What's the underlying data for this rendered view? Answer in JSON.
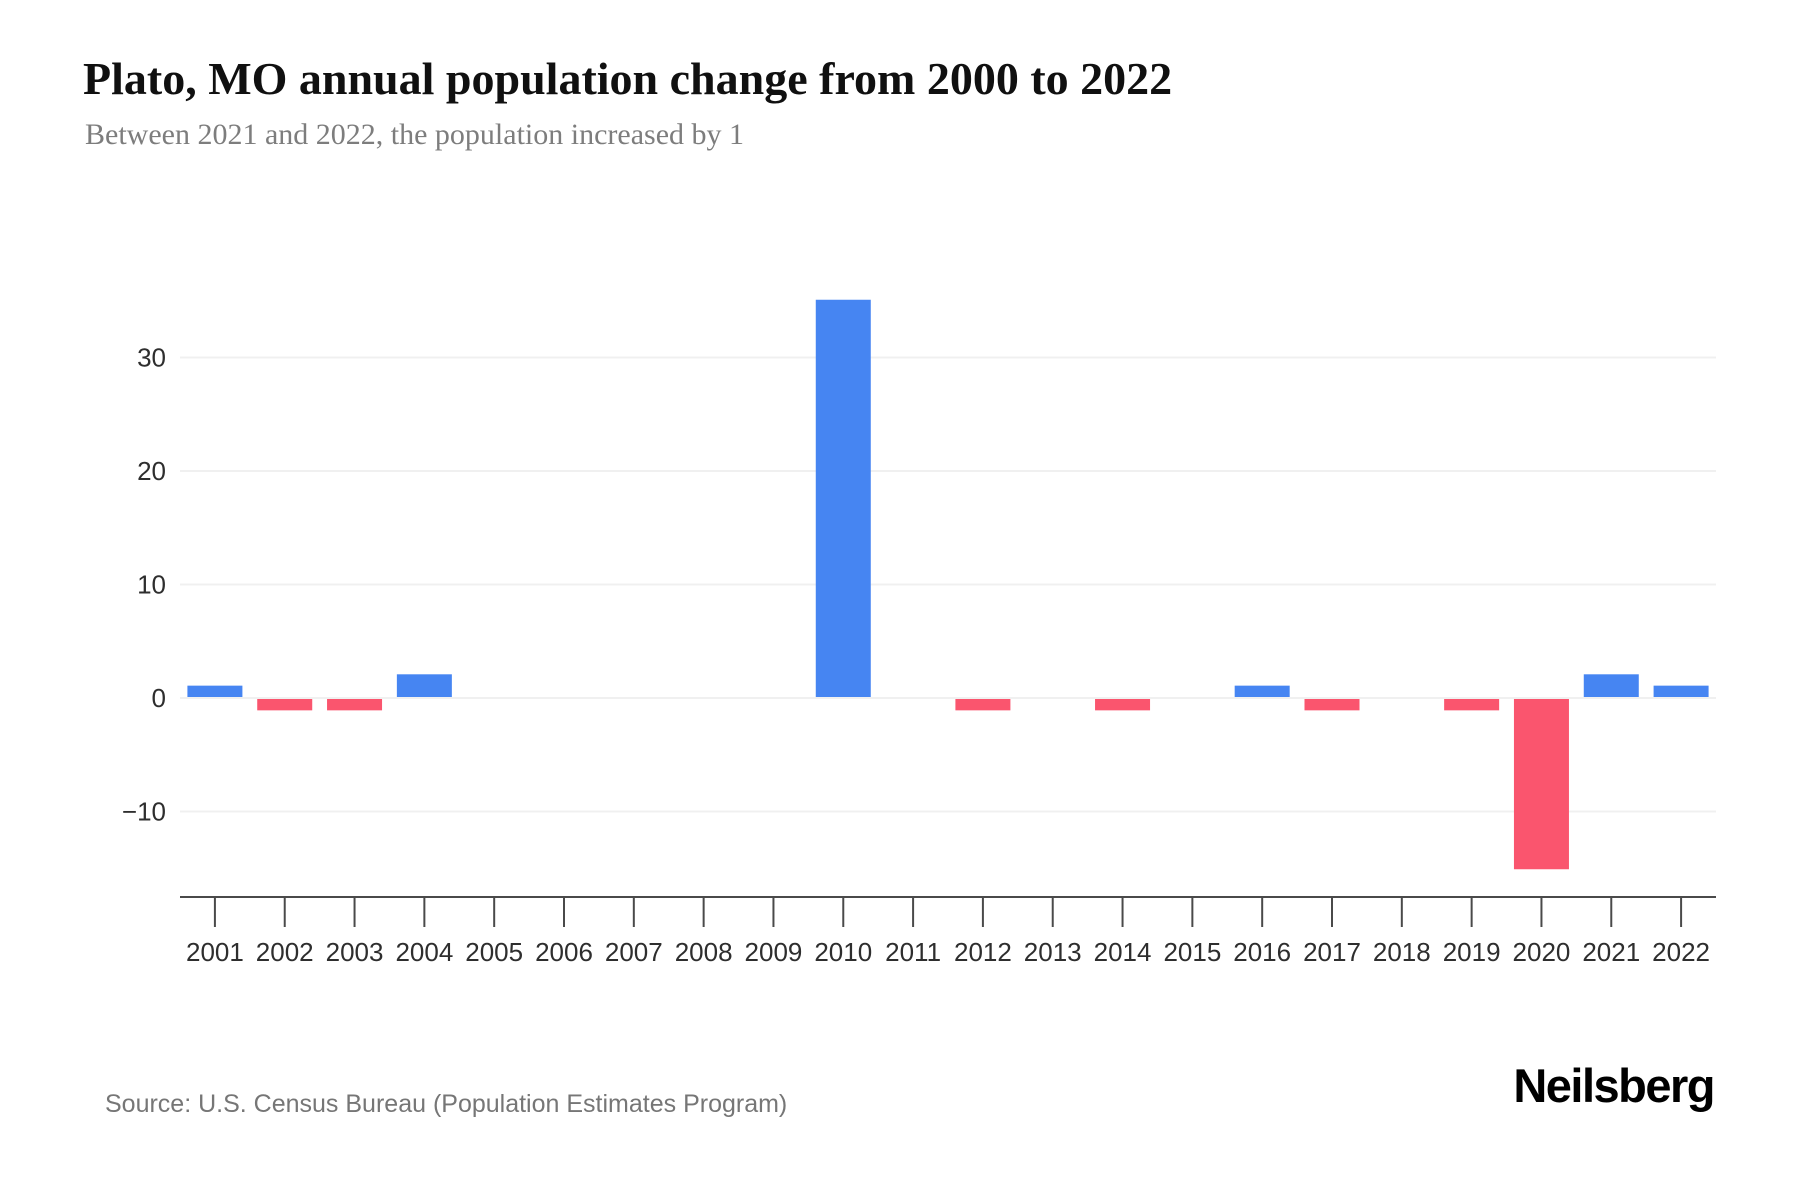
{
  "header": {
    "title": "Plato, MO annual population change from 2000 to 2022",
    "subtitle": "Between 2021 and 2022, the population increased by 1"
  },
  "footer": {
    "source": "Source: U.S. Census Bureau (Population Estimates Program)",
    "brand": "Neilsberg"
  },
  "chart_data": {
    "type": "bar",
    "title": "Plato, MO annual population change from 2000 to 2022",
    "xlabel": "",
    "ylabel": "",
    "categories": [
      "2001",
      "2002",
      "2003",
      "2004",
      "2005",
      "2006",
      "2007",
      "2008",
      "2009",
      "2010",
      "2011",
      "2012",
      "2013",
      "2014",
      "2015",
      "2016",
      "2017",
      "2018",
      "2019",
      "2020",
      "2021",
      "2022"
    ],
    "values": [
      1,
      -1,
      -1,
      2,
      0,
      0,
      0,
      0,
      0,
      35,
      0,
      -1,
      0,
      -1,
      0,
      1,
      -1,
      0,
      -1,
      -15,
      2,
      1
    ],
    "yticks": [
      -10,
      0,
      10,
      20,
      30
    ],
    "ylim": [
      -17.5,
      38.5
    ],
    "grid": "horizontal",
    "legend": "none",
    "colors": {
      "positive": "#4685f2",
      "negative": "#fa556e"
    }
  }
}
